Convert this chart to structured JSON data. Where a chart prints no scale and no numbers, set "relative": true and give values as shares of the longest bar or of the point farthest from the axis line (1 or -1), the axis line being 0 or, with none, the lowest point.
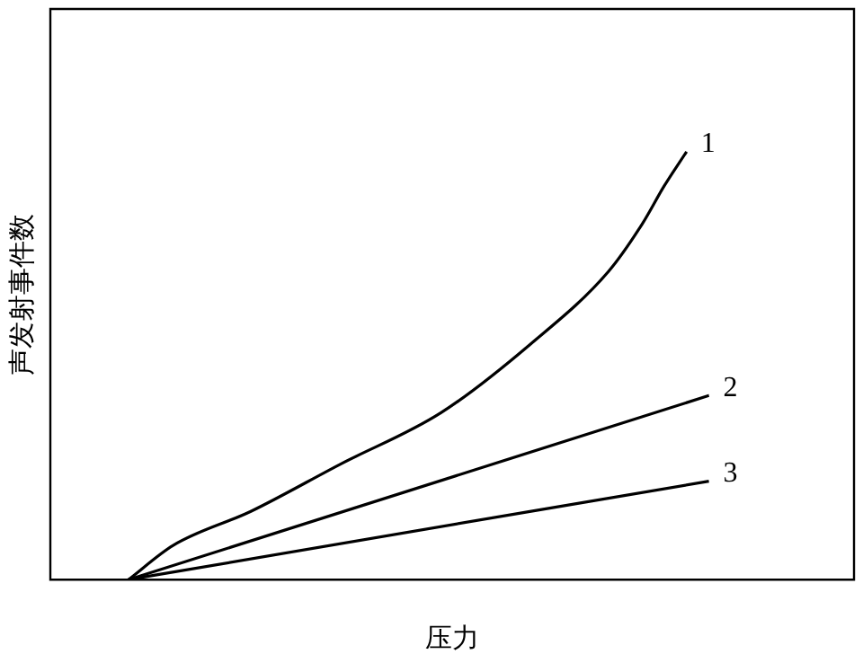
{
  "chart_data": {
    "type": "line",
    "xlabel": "压力",
    "ylabel": "声发射事件数",
    "relative": true,
    "legend": false,
    "marker": "none",
    "grid": false,
    "categories": [
      null,
      null,
      null,
      null,
      null,
      null,
      null,
      null,
      null,
      null,
      null,
      null,
      null,
      null,
      null,
      null,
      null,
      null,
      null,
      null,
      null,
      null,
      null,
      null,
      null,
      null,
      null,
      null,
      null,
      null,
      null,
      null,
      null,
      null,
      null,
      null,
      null,
      null,
      null,
      null,
      null,
      null,
      null,
      null,
      null,
      null,
      null,
      null,
      null,
      null,
      null,
      null,
      null,
      null,
      null,
      null,
      null,
      null,
      null,
      null,
      null,
      null,
      null,
      null,
      null,
      null,
      null,
      null,
      null,
      null,
      null,
      null,
      null
    ],
    "series": [
      {
        "name": "1",
        "color": "#000000",
        "values": [
          null,
          null,
          null,
          null,
          null,
          null,
          null,
          0,
          null,
          null,
          null,
          0.08,
          null,
          null,
          null,
          null,
          null,
          null,
          0.16,
          null,
          null,
          null,
          null,
          null,
          null,
          null,
          0.27,
          null,
          null,
          null,
          null,
          null,
          null,
          null,
          null,
          0.39,
          null,
          null,
          null,
          null,
          null,
          null,
          null,
          0.55,
          null,
          null,
          null,
          null,
          null,
          null,
          0.72,
          null,
          null,
          0.83,
          null,
          0.92,
          null,
          1,
          null,
          null,
          null,
          null,
          null,
          null,
          null,
          null,
          null,
          null,
          null,
          null,
          null,
          null,
          null
        ]
      },
      {
        "name": "2",
        "color": "#000000",
        "values": [
          null,
          null,
          null,
          null,
          null,
          null,
          null,
          0,
          null,
          null,
          null,
          null,
          null,
          null,
          null,
          null,
          null,
          null,
          null,
          null,
          null,
          null,
          null,
          null,
          null,
          null,
          null,
          null,
          null,
          null,
          null,
          null,
          null,
          null,
          null,
          null,
          null,
          null,
          null,
          null,
          null,
          null,
          null,
          null,
          null,
          null,
          null,
          null,
          null,
          null,
          null,
          null,
          null,
          null,
          null,
          null,
          null,
          null,
          null,
          0.43,
          null,
          null,
          null,
          null,
          null,
          null,
          null,
          null,
          null,
          null,
          null,
          null,
          null
        ]
      },
      {
        "name": "3",
        "color": "#000000",
        "values": [
          null,
          null,
          null,
          null,
          null,
          null,
          null,
          0,
          null,
          null,
          null,
          null,
          null,
          null,
          null,
          null,
          null,
          null,
          null,
          null,
          null,
          null,
          null,
          null,
          null,
          null,
          null,
          null,
          null,
          null,
          null,
          null,
          null,
          null,
          null,
          null,
          null,
          null,
          null,
          null,
          null,
          null,
          null,
          null,
          null,
          null,
          null,
          null,
          null,
          null,
          null,
          null,
          null,
          null,
          null,
          null,
          null,
          null,
          null,
          0.23,
          null,
          null,
          null,
          null,
          null,
          null,
          null,
          null,
          null,
          null,
          null,
          null,
          null
        ]
      }
    ]
  }
}
